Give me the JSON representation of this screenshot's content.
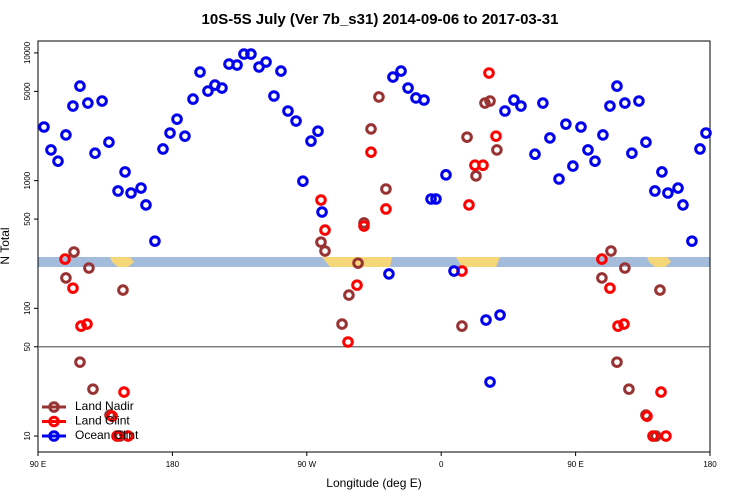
{
  "chart_data": {
    "type": "scatter",
    "title": "10S-5S July (Ver 7b_s31)   2014-09-06 to 2017-03-31",
    "x_label": "Longitude (deg E)",
    "y_label": "N Total",
    "log_y": true,
    "xlim": [
      90,
      540
    ],
    "ylim": [
      7.5,
      12400
    ],
    "xticks": [
      {
        "value": 90,
        "label": "90 E"
      },
      180,
      {
        "value": 270,
        "label": "90 W"
      },
      {
        "value": 360,
        "label": "0"
      },
      {
        "value": 450,
        "label": "90 E"
      },
      {
        "value": 540,
        "label": "180"
      }
    ],
    "yticks": [
      10,
      50,
      100,
      500,
      1000,
      5000,
      10000
    ],
    "hline": 50,
    "legend": "lower left",
    "series": [
      {
        "name": "Land Nadir",
        "color": "#993333",
        "x": [
          114.1,
          108.7,
          124.1,
          118.1,
          126.8,
          138.2,
          146.9,
          144.9,
          279.5,
          282.2,
          293.6,
          298.2,
          304.3,
          308.3,
          313,
          318.3,
          323,
          373.9,
          377.3,
          383.3,
          389.3,
          392.7,
          397.3,
          473.7,
          467.6,
          483,
          477.7,
          485.7,
          497.1,
          506.5,
          503.8
        ],
        "values": [
          276,
          173,
          207,
          37.9,
          23.3,
          14.6,
          139,
          10,
          330,
          281,
          75.3,
          127,
          226,
          466,
          2540,
          4520,
          860,
          72.6,
          2190,
          1090,
          4050,
          4200,
          1740,
          281,
          173,
          207,
          37.9,
          23.3,
          14.6,
          139,
          10
        ]
      },
      {
        "name": "Land Glint",
        "color": "#ff0000",
        "x": [
          108.1,
          113.4,
          118.8,
          122.8,
          139.6,
          142.9,
          147.6,
          150.3,
          279.5,
          282.2,
          297.6,
          303.6,
          308.3,
          313,
          323,
          373.9,
          378.6,
          382.6,
          388,
          392,
          396.7,
          467.6,
          473,
          478.4,
          482.4,
          497.8,
          501.8,
          507.2,
          510.5
        ],
        "values": [
          243,
          144,
          72.6,
          75.3,
          14.3,
          10,
          22.1,
          10,
          705,
          410,
          54.5,
          152,
          441,
          1670,
          600,
          196,
          645,
          1320,
          1320,
          6960,
          2230,
          243,
          144,
          72.6,
          75.3,
          14.3,
          10,
          22.1,
          10
        ]
      },
      {
        "name": "Ocean Glint",
        "color": "#0000ee",
        "x": [
          94,
          98.7,
          103.4,
          108.7,
          113.4,
          118.1,
          123.4,
          128.2,
          132.9,
          137.5,
          143.6,
          148.3,
          152.3,
          159,
          162.3,
          168.3,
          173.7,
          178.4,
          183.1,
          188.4,
          193.8,
          198.5,
          203.8,
          208.5,
          213.2,
          217.9,
          223.3,
          227.9,
          232.6,
          238,
          242.7,
          248,
          252.7,
          257.4,
          262.8,
          267.4,
          272.8,
          277.5,
          280.2,
          325,
          327.7,
          333.1,
          337.8,
          343.1,
          348.5,
          353.2,
          356.5,
          363.2,
          368.6,
          390,
          392.7,
          399.4,
          402.7,
          408.7,
          413.4,
          422.8,
          428.1,
          432.8,
          438.9,
          443.5,
          448.2,
          453.6,
          458.3,
          463,
          468.3,
          473,
          477.7,
          483,
          487.7,
          492.4,
          497.1,
          503.1,
          507.8,
          511.8,
          518.6,
          521.9,
          527.9,
          533.3,
          537.3
        ],
        "values": [
          2630,
          1740,
          1420,
          2280,
          3840,
          5500,
          4050,
          1640,
          4200,
          2000,
          830,
          1170,
          800,
          875,
          645,
          336,
          1770,
          2360,
          3030,
          2230,
          4350,
          7080,
          5030,
          5600,
          5310,
          8180,
          8040,
          9800,
          9800,
          7760,
          8490,
          4600,
          7210,
          3510,
          2930,
          990,
          2040,
          2440,
          568,
          186,
          6470,
          7210,
          5310,
          4440,
          4280,
          718,
          718,
          1110,
          196,
          81,
          26.5,
          88.7,
          3510,
          4280,
          3840,
          1610,
          4050,
          2160,
          1030,
          2770,
          1300,
          2630,
          1740,
          1420,
          2280,
          3840,
          5500,
          4050,
          1640,
          4200,
          2000,
          830,
          1170,
          800,
          875,
          645,
          336,
          1770,
          2360
        ]
      }
    ]
  }
}
